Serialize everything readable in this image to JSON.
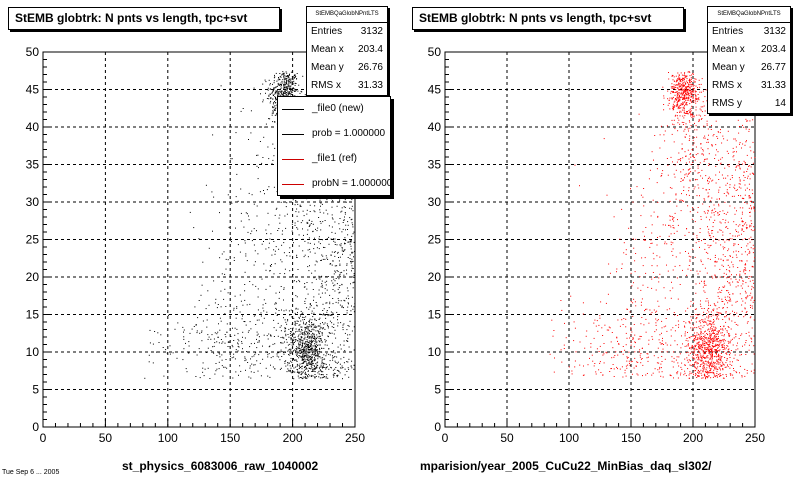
{
  "panels": [
    {
      "title": "StEMB globtrk: N pnts vs length, tpc+svt",
      "stats": {
        "name": "StEMBQaGlobNPntLTS",
        "rows": [
          {
            "label": "Entries",
            "value": "3132"
          },
          {
            "label": "Mean x",
            "value": "203.4"
          },
          {
            "label": "Mean y",
            "value": "26.76"
          },
          {
            "label": "RMS x",
            "value": "31.33"
          }
        ]
      },
      "legend": [
        {
          "label": "_file0 (new)",
          "color": "#000000"
        },
        {
          "label": "prob = 1.000000",
          "color": "#000000"
        },
        {
          "label": "_file1 (ref)",
          "color": "#cc0000"
        },
        {
          "label": "probN = 1.000000",
          "color": "#cc0000"
        }
      ],
      "xlabel": "st_physics_6083006_raw_1040002"
    },
    {
      "title": "StEMB globtrk: N pnts vs length, tpc+svt",
      "stats": {
        "name": "StEMBQaGlobNPntLTS",
        "rows": [
          {
            "label": "Entries",
            "value": "3132"
          },
          {
            "label": "Mean x",
            "value": "203.4"
          },
          {
            "label": "Mean y",
            "value": "26.77"
          },
          {
            "label": "RMS x",
            "value": "31.33"
          },
          {
            "label": "RMS y",
            "value": "14"
          }
        ]
      },
      "xlabel": "mparision/year_2005_CuCu22_MinBias_daq_sl302/"
    }
  ],
  "footer": "Tue Sep 6 ... 2005",
  "chart_data": [
    {
      "type": "scatter",
      "title": "StEMB globtrk: N pnts vs length, tpc+svt",
      "xlabel": "st_physics_6083006_raw_1040002",
      "ylabel": "",
      "xlim": [
        0,
        250
      ],
      "ylim": [
        0,
        50
      ],
      "xticks": [
        0,
        50,
        100,
        150,
        200,
        250
      ],
      "yticks": [
        0,
        5,
        10,
        15,
        20,
        25,
        30,
        35,
        40,
        45,
        50
      ],
      "grid": true,
      "marker_color": "#000000",
      "entries": 3132,
      "point_count": 2600,
      "clusters": [
        {
          "x": 193,
          "y": 44.5,
          "sx": 6,
          "sy": 1.6,
          "weight": 0.17
        },
        {
          "x": 205,
          "y": 36,
          "sx": 16,
          "sy": 5.5,
          "weight": 0.12
        },
        {
          "x": 212,
          "y": 10.5,
          "sx": 9,
          "sy": 2.4,
          "weight": 0.26
        },
        {
          "x": 228,
          "y": 20,
          "sx": 12,
          "sy": 8,
          "weight": 0.14
        },
        {
          "x": 155,
          "y": 11,
          "sx": 35,
          "sy": 3,
          "weight": 0.11
        },
        {
          "x": 185,
          "y": 22,
          "sx": 28,
          "sy": 9,
          "weight": 0.12
        },
        {
          "x": 242,
          "y": 30,
          "sx": 6,
          "sy": 12,
          "weight": 0.08
        }
      ]
    },
    {
      "type": "scatter",
      "title": "StEMB globtrk: N pnts vs length, tpc+svt",
      "xlabel": "mparision/year_2005_CuCu22_MinBias_daq_sl302/",
      "ylabel": "",
      "xlim": [
        0,
        250
      ],
      "ylim": [
        0,
        50
      ],
      "xticks": [
        0,
        50,
        100,
        150,
        200,
        250
      ],
      "yticks": [
        0,
        5,
        10,
        15,
        20,
        25,
        30,
        35,
        40,
        45,
        50
      ],
      "grid": true,
      "marker_color": "#ff0000",
      "entries": 3132,
      "point_count": 2600,
      "clusters": [
        {
          "x": 193,
          "y": 44.5,
          "sx": 6,
          "sy": 1.6,
          "weight": 0.17
        },
        {
          "x": 205,
          "y": 36,
          "sx": 16,
          "sy": 5.5,
          "weight": 0.12
        },
        {
          "x": 212,
          "y": 10.5,
          "sx": 9,
          "sy": 2.4,
          "weight": 0.26
        },
        {
          "x": 228,
          "y": 20,
          "sx": 12,
          "sy": 8,
          "weight": 0.14
        },
        {
          "x": 155,
          "y": 11,
          "sx": 35,
          "sy": 3,
          "weight": 0.11
        },
        {
          "x": 185,
          "y": 22,
          "sx": 28,
          "sy": 9,
          "weight": 0.12
        },
        {
          "x": 242,
          "y": 30,
          "sx": 6,
          "sy": 12,
          "weight": 0.08
        }
      ]
    }
  ]
}
